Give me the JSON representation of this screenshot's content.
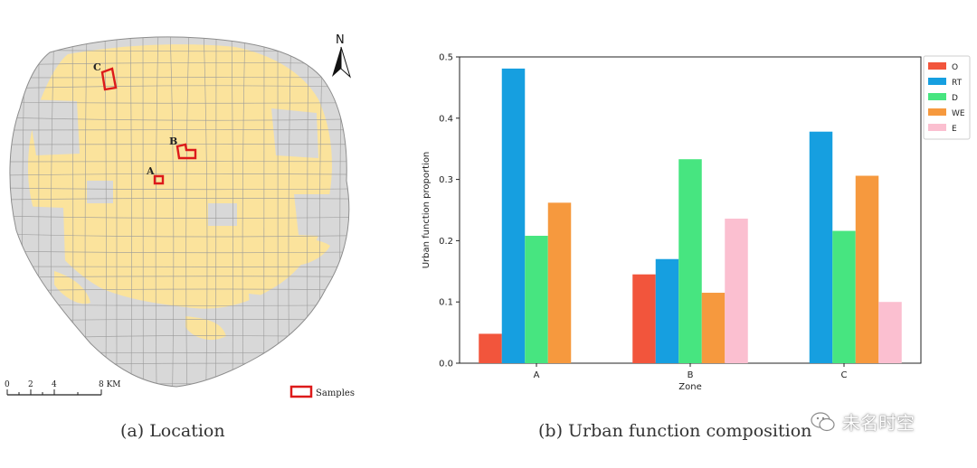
{
  "map": {
    "north_label": "N",
    "sample_labels": [
      "A",
      "B",
      "C"
    ],
    "scale_ticks": [
      "0",
      "2",
      "4",
      "8 KM"
    ],
    "legend_label": "Samples",
    "colors": {
      "urban": "#fbe39c",
      "other": "#d8d8d8",
      "roads": "#9a9a9a",
      "sample": "#dd1a1a"
    }
  },
  "captions": {
    "a": "(a) Location",
    "b": "(b) Urban function composition"
  },
  "watermark": {
    "text": "未名时空",
    "icon": "wechat-icon"
  },
  "chart_data": {
    "type": "bar",
    "categories": [
      "A",
      "B",
      "C"
    ],
    "xlabel": "Zone",
    "ylabel": "Urban function proportion",
    "ylim": [
      0,
      0.5
    ],
    "yticks": [
      "0.0",
      "0.1",
      "0.2",
      "0.3",
      "0.4",
      "0.5"
    ],
    "legend_position": "right",
    "series": [
      {
        "name": "O",
        "color": "#f2553c",
        "values": [
          0.048,
          0.145,
          0
        ]
      },
      {
        "name": "RT",
        "color": "#169fe0",
        "values": [
          0.481,
          0.17,
          0.378
        ]
      },
      {
        "name": "D",
        "color": "#47e580",
        "values": [
          0.208,
          0.333,
          0.216
        ]
      },
      {
        "name": "WE",
        "color": "#f6993e",
        "values": [
          0.262,
          0.115,
          0.306
        ]
      },
      {
        "name": "E",
        "color": "#fbbfd0",
        "values": [
          0,
          0.236,
          0.1
        ]
      }
    ]
  }
}
